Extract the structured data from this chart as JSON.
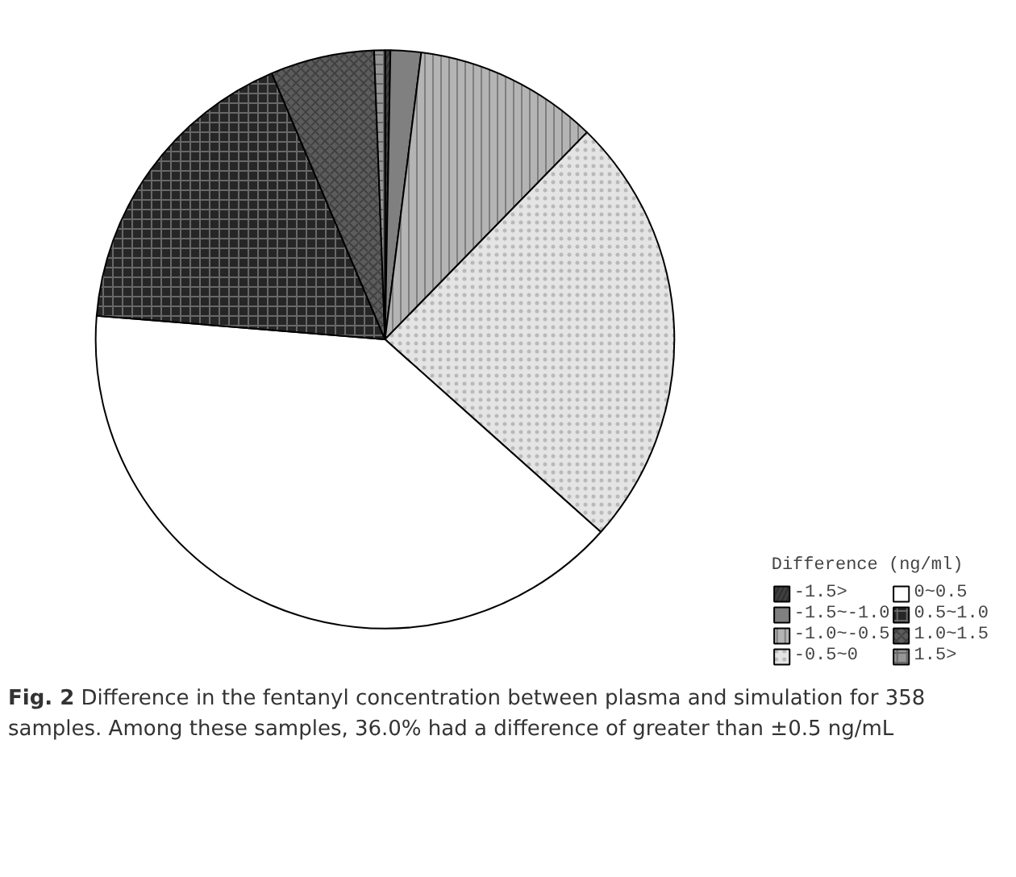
{
  "chart_data": {
    "type": "pie",
    "legend_title": "Difference (ng/ml)",
    "categories": [
      "-1.5>",
      "-1.5~-1.0",
      "-1.0~-0.5",
      "-0.5~0",
      "0~0.5",
      "0.5~1.0",
      "1.0~1.5",
      "1.5>"
    ],
    "values": [
      0.3,
      1.7,
      10.3,
      24.3,
      39.7,
      17.3,
      5.8,
      0.6
    ],
    "colors": [
      "#404040",
      "#808080",
      "#b4b4b4",
      "#e4e4e4",
      "#ffffff",
      "#262626",
      "#5c5c5c",
      "#969696"
    ],
    "legend": "bottom right",
    "annotations": [
      "Fig. 2",
      "Difference in the fentanyl concentration between plasma and simulation for 358 samples. Among these samples, 36.0% had a difference of greater than ±0.5 ng/mL"
    ]
  }
}
